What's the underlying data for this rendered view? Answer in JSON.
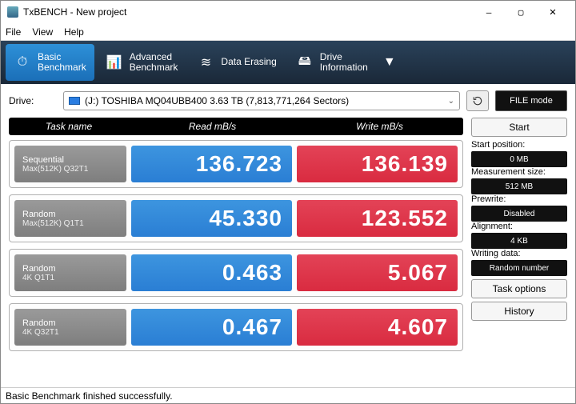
{
  "window": {
    "title": "TxBENCH - New project",
    "menus": [
      "File",
      "View",
      "Help"
    ],
    "win_buttons": {
      "min": "—",
      "max": "▢",
      "close": "✕"
    }
  },
  "toolbar": {
    "tabs": [
      {
        "label": "Basic\nBenchmark",
        "icon": "⏱"
      },
      {
        "label": "Advanced\nBenchmark",
        "icon": "📊"
      },
      {
        "label": "Data Erasing",
        "icon": "≋"
      },
      {
        "label": "Drive\nInformation",
        "icon": "🖴"
      }
    ],
    "active_index": 0,
    "dropdown_glyph": "▼"
  },
  "drive": {
    "label": "Drive:",
    "value": "(J:) TOSHIBA MQ04UBB400  3.63 TB (7,813,771,264 Sectors)",
    "chevron": "⌄"
  },
  "file_mode_label": "FILE mode",
  "columns": {
    "task": "Task name",
    "read": "Read mB/s",
    "write": "Write mB/s"
  },
  "rows": [
    {
      "name1": "Sequential",
      "name2": "Max(512K) Q32T1",
      "read": "136.723",
      "write": "136.139"
    },
    {
      "name1": "Random",
      "name2": "Max(512K) Q1T1",
      "read": "45.330",
      "write": "123.552"
    },
    {
      "name1": "Random",
      "name2": "4K Q1T1",
      "read": "0.463",
      "write": "5.067"
    },
    {
      "name1": "Random",
      "name2": "4K Q32T1",
      "read": "0.467",
      "write": "4.607"
    }
  ],
  "sidebar": {
    "start": "Start",
    "items": [
      {
        "label": "Start position:",
        "value": "0 MB"
      },
      {
        "label": "Measurement size:",
        "value": "512 MB"
      },
      {
        "label": "Prewrite:",
        "value": "Disabled"
      },
      {
        "label": "Alignment:",
        "value": "4 KB"
      },
      {
        "label": "Writing data:",
        "value": "Random number"
      }
    ],
    "task_options": "Task options",
    "history": "History"
  },
  "status": "Basic Benchmark finished successfully.",
  "colors": {
    "toolbar_bg_top": "#2a425a",
    "toolbar_bg_bottom": "#1a2838",
    "tab_active_top": "#2d90d8",
    "tab_active_bottom": "#1b6fb8",
    "read_top": "#3d95df",
    "read_bottom": "#2a7ed4",
    "write_top": "#e34357",
    "write_bottom": "#d92b40",
    "task_top": "#9a9a9a",
    "task_bottom": "#7e7e7e",
    "black": "#111111"
  }
}
